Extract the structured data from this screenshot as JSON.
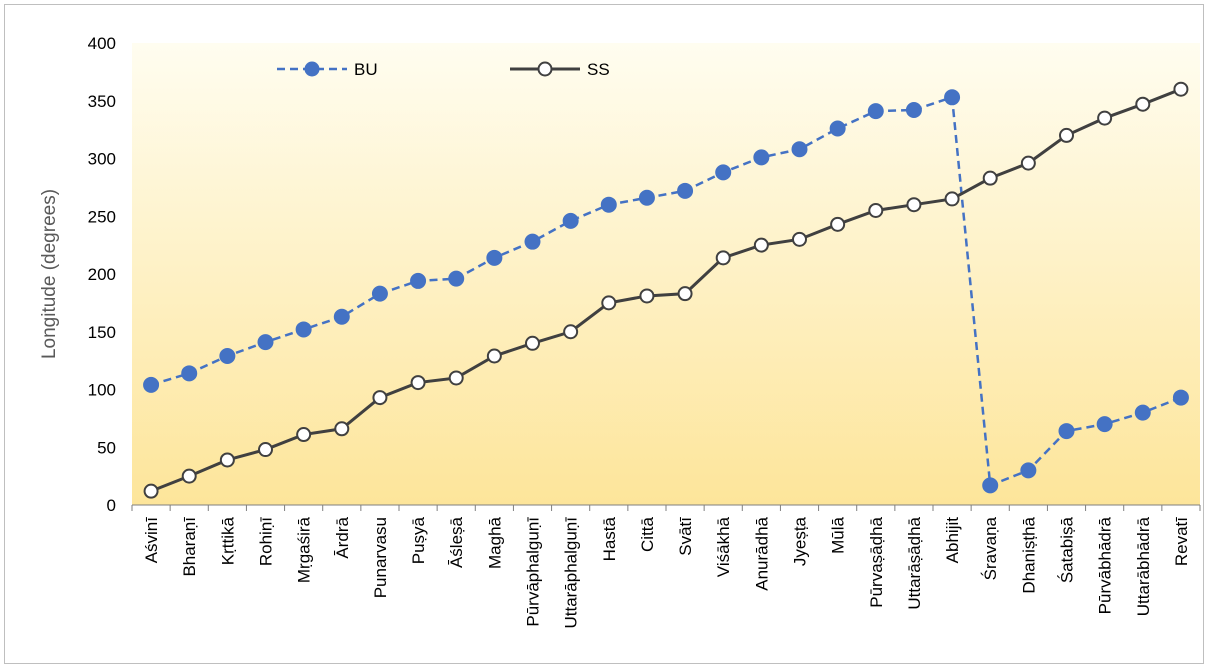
{
  "chart_data": {
    "type": "line",
    "title": "",
    "xlabel": "",
    "ylabel": "Longitude (degrees)",
    "ylim": [
      0,
      400
    ],
    "yticks": [
      0,
      50,
      100,
      150,
      200,
      250,
      300,
      350,
      400
    ],
    "grid": false,
    "legend": "top-left",
    "background_gradient": [
      "#fffdf0",
      "#fde59a"
    ],
    "categories": [
      "Aśvinī",
      "Bharaṇī",
      "Kṛttikā",
      "Rohiṇī",
      "Mṛgaśirā",
      "Ārdrā",
      "Punarvasu",
      "Puṣyā",
      "Āśleṣā",
      "Maghā",
      "Pūrvāphalguṇī",
      "Uttarāphalguṇī",
      "Hastā",
      "Cittā",
      "Svātī",
      "Viśākhā",
      "Anurādhā",
      "Jyeṣṭa",
      "Mūlā",
      "Pūrvaṣāḍhā",
      "Uttarāṣāḍhā",
      "Abhijit",
      "Śravaṇa",
      "Dhaniṣṭhā",
      "Śatabiṣā",
      "Pūrvābhādrā",
      "Uttarābhādrā",
      "Revatī"
    ],
    "series": [
      {
        "name": "BU",
        "color": "#4472c4",
        "line_style": "dashed",
        "marker": "filled-circle",
        "values": [
          104,
          114,
          129,
          141,
          152,
          163,
          183,
          194,
          196,
          214,
          228,
          246,
          260,
          266,
          272,
          288,
          301,
          308,
          326,
          341,
          342,
          353,
          17,
          30,
          64,
          70,
          80,
          93
        ]
      },
      {
        "name": "SS",
        "color": "#404040",
        "line_style": "solid",
        "marker": "open-circle",
        "values": [
          12,
          25,
          39,
          48,
          61,
          66,
          93,
          106,
          110,
          129,
          140,
          150,
          175,
          181,
          183,
          214,
          225,
          230,
          243,
          255,
          260,
          265,
          283,
          296,
          320,
          335,
          347,
          360
        ]
      }
    ]
  }
}
